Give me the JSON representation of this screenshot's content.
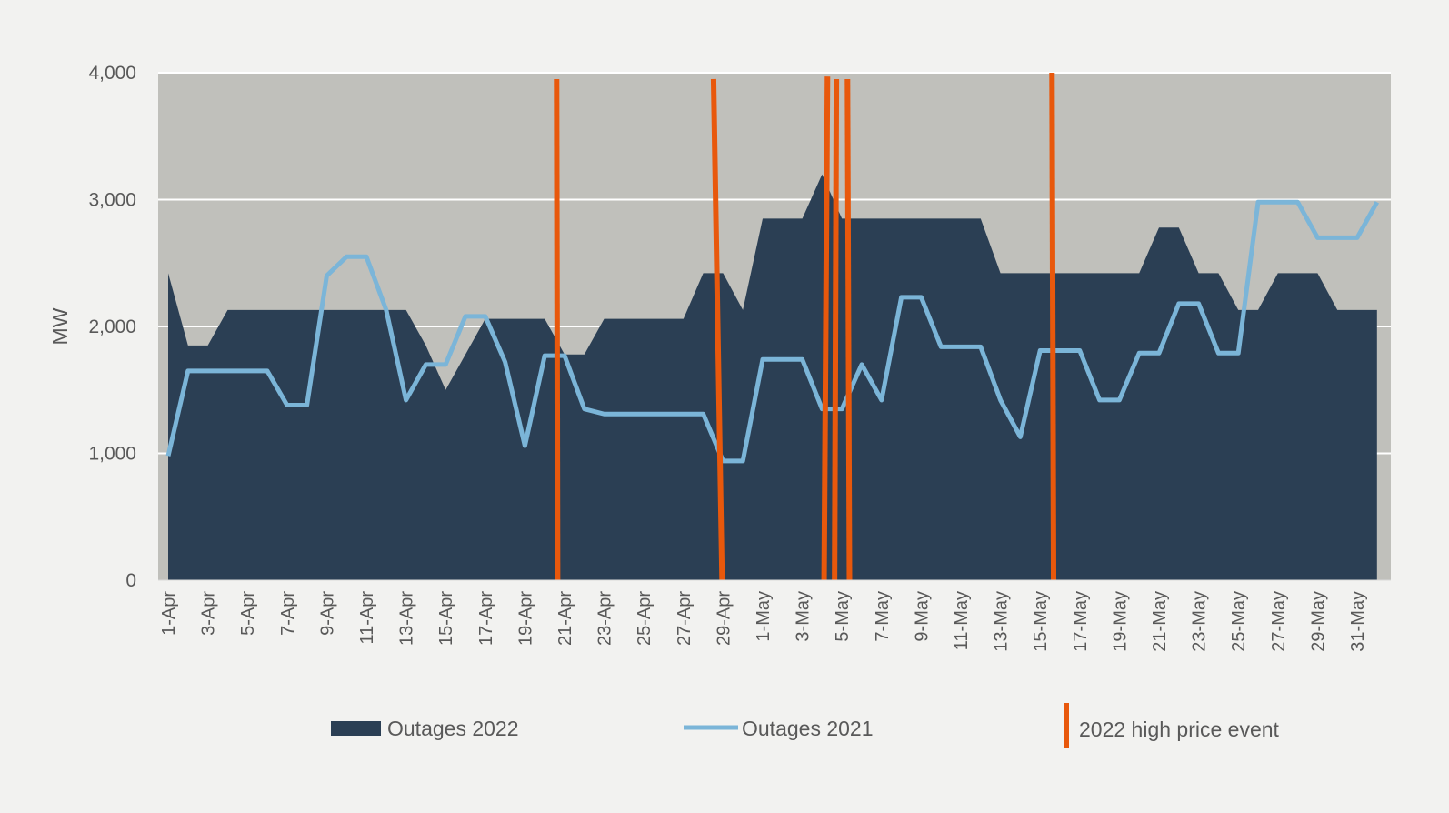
{
  "chart_data": {
    "type": "area",
    "title": "",
    "xlabel": "",
    "ylabel": "MW",
    "ylim": [
      0,
      4000
    ],
    "yticks": [
      0,
      1000,
      2000,
      3000,
      4000
    ],
    "ytick_labels": [
      "0",
      "1,000",
      "2,000",
      "3,000",
      "4,000"
    ],
    "grid": true,
    "legend": "bottom",
    "x": [
      "1-Apr",
      "2-Apr",
      "3-Apr",
      "4-Apr",
      "5-Apr",
      "6-Apr",
      "7-Apr",
      "8-Apr",
      "9-Apr",
      "10-Apr",
      "11-Apr",
      "12-Apr",
      "13-Apr",
      "14-Apr",
      "15-Apr",
      "16-Apr",
      "17-Apr",
      "18-Apr",
      "19-Apr",
      "20-Apr",
      "21-Apr",
      "22-Apr",
      "23-Apr",
      "24-Apr",
      "25-Apr",
      "26-Apr",
      "27-Apr",
      "28-Apr",
      "29-Apr",
      "30-Apr",
      "1-May",
      "2-May",
      "3-May",
      "4-May",
      "5-May",
      "6-May",
      "7-May",
      "8-May",
      "9-May",
      "10-May",
      "11-May",
      "12-May",
      "13-May",
      "14-May",
      "15-May",
      "16-May",
      "17-May",
      "18-May",
      "19-May",
      "20-May",
      "21-May",
      "22-May",
      "23-May",
      "24-May",
      "25-May",
      "26-May",
      "27-May",
      "28-May",
      "29-May",
      "30-May",
      "31-May",
      "1-Jun"
    ],
    "xtick_labels": [
      "1-Apr",
      "3-Apr",
      "5-Apr",
      "7-Apr",
      "9-Apr",
      "11-Apr",
      "13-Apr",
      "15-Apr",
      "17-Apr",
      "19-Apr",
      "21-Apr",
      "23-Apr",
      "25-Apr",
      "27-Apr",
      "29-Apr",
      "1-May",
      "3-May",
      "5-May",
      "7-May",
      "9-May",
      "11-May",
      "13-May",
      "15-May",
      "17-May",
      "19-May",
      "21-May",
      "23-May",
      "25-May",
      "27-May",
      "29-May",
      "31-May"
    ],
    "series": [
      {
        "name": "Outages 2022",
        "type": "area",
        "color": "#2b3f54",
        "values": [
          2420,
          1850,
          1850,
          2130,
          2130,
          2130,
          2130,
          2130,
          2130,
          2130,
          2130,
          2130,
          2130,
          1850,
          1500,
          1780,
          2060,
          2060,
          2060,
          2060,
          1780,
          1780,
          2060,
          2060,
          2060,
          2060,
          2060,
          2420,
          2420,
          2130,
          2850,
          2850,
          2850,
          3200,
          2850,
          2850,
          2850,
          2850,
          2850,
          2850,
          2850,
          2850,
          2420,
          2420,
          2420,
          2420,
          2420,
          2420,
          2420,
          2420,
          2780,
          2780,
          2420,
          2420,
          2130,
          2130,
          2420,
          2420,
          2420,
          2130,
          2130,
          2130
        ]
      },
      {
        "name": "Outages 2021",
        "type": "line",
        "color": "#7bb5d8",
        "values": [
          980,
          1650,
          1650,
          1650,
          1650,
          1650,
          1380,
          1380,
          2400,
          2550,
          2550,
          2130,
          1420,
          1700,
          1700,
          2080,
          2080,
          1720,
          1060,
          1770,
          1770,
          1350,
          1310,
          1310,
          1310,
          1310,
          1310,
          1310,
          940,
          940,
          1740,
          1740,
          1740,
          1350,
          1350,
          1700,
          1420,
          2230,
          2230,
          1840,
          1840,
          1840,
          1420,
          1130,
          1810,
          1810,
          1810,
          1420,
          1420,
          1790,
          1790,
          2180,
          2180,
          1790,
          1790,
          2980,
          2980,
          2980,
          2700,
          2700,
          2700,
          2980
        ]
      },
      {
        "name": "2022 high price event",
        "type": "event",
        "color": "#e8580c",
        "positions": [
          {
            "from": 19.6,
            "to": 19.65,
            "top": 3950
          },
          {
            "from": 27.52,
            "to": 27.95,
            "top": 3950
          },
          {
            "from": 33.27,
            "to": 33.1,
            "top": 3970
          },
          {
            "from": 33.72,
            "to": 33.63,
            "top": 3950
          },
          {
            "from": 34.28,
            "to": 34.38,
            "top": 3950
          },
          {
            "from": 44.6,
            "to": 44.68,
            "top": 4000
          }
        ]
      }
    ]
  }
}
